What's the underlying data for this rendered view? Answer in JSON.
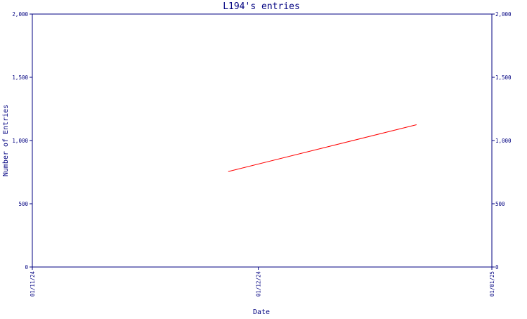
{
  "chart_data": {
    "type": "line",
    "title": "L194's entries",
    "xlabel": "Date",
    "ylabel": "Number of Entries",
    "x_ticks": [
      "01/11/24",
      "01/12/24",
      "01/01/25"
    ],
    "y_ticks": [
      "0",
      "500",
      "1,000",
      "1,500",
      "2,000"
    ],
    "ylim": [
      0,
      2000
    ],
    "xlim": [
      "2024-11-01",
      "2025-01-01"
    ],
    "grid": false,
    "legend": "none",
    "series": [
      {
        "color": "#ff0000",
        "points": [
          {
            "x": "2024-11-27",
            "y": 755
          },
          {
            "x": "2024-12-22",
            "y": 1125
          }
        ]
      }
    ],
    "colors": {
      "axis": "#000080",
      "text": "#000080",
      "line": "#ff0000",
      "background": "#ffffff"
    }
  }
}
